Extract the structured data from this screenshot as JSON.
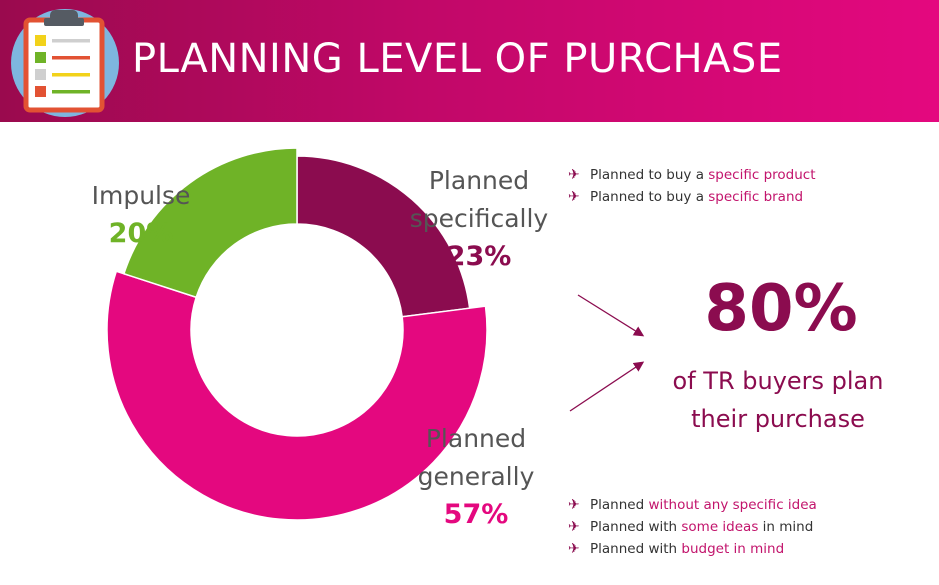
{
  "header": {
    "title": "PLANNING LEVEL OF PURCHASE",
    "icon": "clipboard-checklist-icon",
    "gradient": [
      "#9a0a4e",
      "#e4087f"
    ]
  },
  "chart_data": {
    "type": "pie",
    "title": "",
    "hole": true,
    "slices": [
      {
        "label_line1": "Planned",
        "label_line2": "specifically",
        "value": 23,
        "value_label": "23%",
        "color": "#8b0c4f"
      },
      {
        "label_line1": "Planned",
        "label_line2": "generally",
        "value": 57,
        "value_label": "57%",
        "color": "#e4087f"
      },
      {
        "label_line1": "Impulse",
        "label_line2": "",
        "value": 20,
        "value_label": "20%",
        "color": "#6fb327"
      }
    ]
  },
  "bullets_top": [
    {
      "pre": "Planned to buy a ",
      "hl": "specific product",
      "post": ""
    },
    {
      "pre": "Planned to buy a ",
      "hl": "specific brand",
      "post": ""
    }
  ],
  "bullets_bottom": [
    {
      "pre": "Planned ",
      "hl": "without any specific idea",
      "post": ""
    },
    {
      "pre": "Planned with ",
      "hl": "some ideas",
      "post": " in mind"
    },
    {
      "pre": "Planned with ",
      "hl": "budget in mind",
      "post": ""
    }
  ],
  "callout": {
    "value": "80%",
    "caption_line1": "of TR buyers plan",
    "caption_line2": "their purchase"
  },
  "bullet_icon": "airplane-icon",
  "colors": {
    "accent": "#8b0c4f",
    "pink": "#e4087f",
    "green": "#6fb327"
  }
}
